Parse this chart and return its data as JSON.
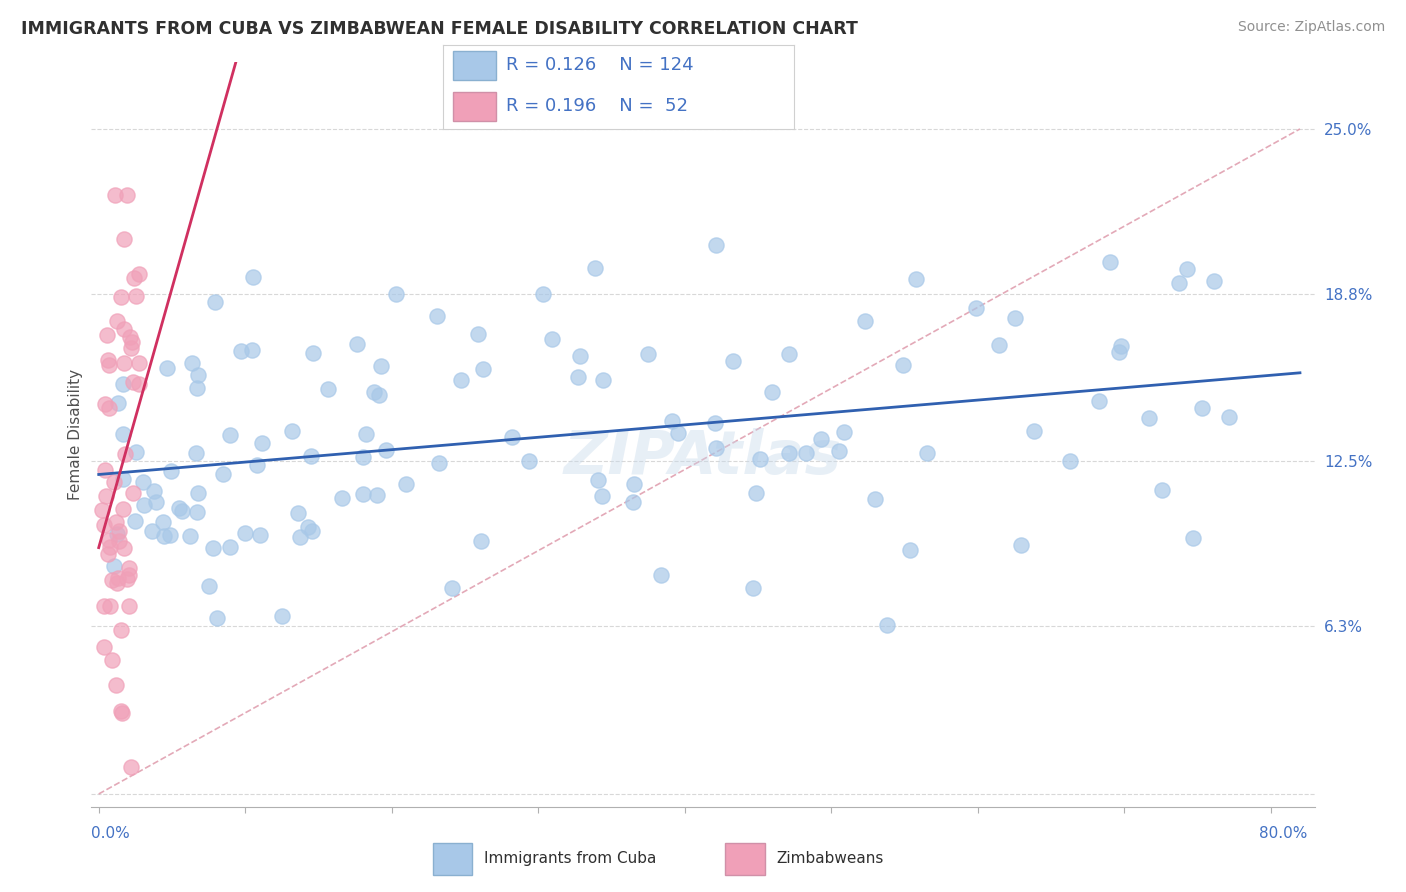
{
  "title": "IMMIGRANTS FROM CUBA VS ZIMBABWEAN FEMALE DISABILITY CORRELATION CHART",
  "source": "Source: ZipAtlas.com",
  "ylabel": "Female Disability",
  "ytick_vals": [
    0.0,
    0.063,
    0.125,
    0.188,
    0.25
  ],
  "ytick_labels": [
    "",
    "6.3%",
    "12.5%",
    "18.8%",
    "25.0%"
  ],
  "xtick_vals": [
    0.0,
    0.1,
    0.2,
    0.3,
    0.4,
    0.5,
    0.6,
    0.7,
    0.8
  ],
  "xlim": [
    -0.005,
    0.83
  ],
  "ylim": [
    -0.005,
    0.275
  ],
  "legend_r1": "R = 0.126",
  "legend_n1": "N = 124",
  "legend_r2": "R = 0.196",
  "legend_n2": "N =  52",
  "legend_label1": "Immigrants from Cuba",
  "legend_label2": "Zimbabweans",
  "color_cuba": "#a8c8e8",
  "color_cuba_edge": "#a8c8e8",
  "color_cuba_line": "#3060b0",
  "color_zim": "#f0a0b8",
  "color_zim_edge": "#f0a0b8",
  "color_zim_line": "#d03060",
  "color_ref_line": "#e0a0b0",
  "color_grid": "#d8d8d8",
  "color_blue_text": "#4472c4",
  "color_title": "#303030",
  "color_source": "#909090",
  "watermark": "ZIPAtlas",
  "cuba_trend_x0": 0.0,
  "cuba_trend_x1": 0.82,
  "zim_trend_x0": 0.0,
  "zim_trend_x1": 0.17,
  "ref_line_x0": 0.0,
  "ref_line_x1": 0.82,
  "ref_line_y0": 0.0,
  "ref_line_y1": 0.25
}
